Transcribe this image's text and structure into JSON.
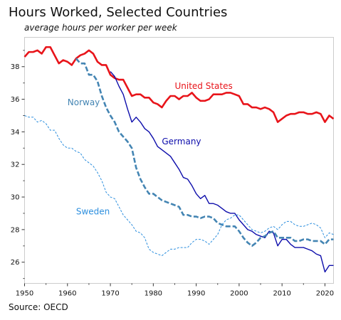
{
  "chart_data": {
    "type": "line",
    "title": "Hours Worked, Selected Countries",
    "subtitle": "average hours per worker per week",
    "source": "Source: OECD",
    "xlim": [
      1950,
      2022
    ],
    "ylim": [
      24.7,
      39.8
    ],
    "xticks": [
      1950,
      1960,
      1970,
      1980,
      1990,
      2000,
      2010,
      2020
    ],
    "yticks": [
      26,
      28,
      30,
      32,
      34,
      36,
      38
    ],
    "grid": false,
    "series": [
      {
        "name": "United States",
        "color": "#e8141a",
        "style": "solid-thick",
        "label_pos": [
          1985,
          36.8
        ],
        "x": [
          1950,
          1951,
          1952,
          1953,
          1954,
          1955,
          1956,
          1957,
          1958,
          1959,
          1960,
          1961,
          1962,
          1963,
          1964,
          1965,
          1966,
          1967,
          1968,
          1969,
          1970,
          1971,
          1972,
          1973,
          1974,
          1975,
          1976,
          1977,
          1978,
          1979,
          1980,
          1981,
          1982,
          1983,
          1984,
          1985,
          1986,
          1987,
          1988,
          1989,
          1990,
          1991,
          1992,
          1993,
          1994,
          1995,
          1996,
          1997,
          1998,
          1999,
          2000,
          2001,
          2002,
          2003,
          2004,
          2005,
          2006,
          2007,
          2008,
          2009,
          2010,
          2011,
          2012,
          2013,
          2014,
          2015,
          2016,
          2017,
          2018,
          2019,
          2020,
          2021,
          2022
        ],
        "y": [
          38.6,
          38.9,
          38.9,
          39.0,
          38.8,
          39.2,
          39.2,
          38.7,
          38.2,
          38.4,
          38.3,
          38.1,
          38.5,
          38.7,
          38.8,
          39.0,
          38.8,
          38.3,
          38.1,
          38.1,
          37.5,
          37.3,
          37.2,
          37.2,
          36.7,
          36.2,
          36.3,
          36.3,
          36.1,
          36.1,
          35.8,
          35.7,
          35.5,
          35.9,
          36.2,
          36.2,
          36.0,
          36.2,
          36.2,
          36.4,
          36.1,
          35.9,
          35.9,
          36.0,
          36.3,
          36.3,
          36.3,
          36.4,
          36.4,
          36.3,
          36.2,
          35.7,
          35.7,
          35.5,
          35.5,
          35.4,
          35.5,
          35.4,
          35.2,
          34.6,
          34.8,
          35.0,
          35.1,
          35.1,
          35.2,
          35.2,
          35.1,
          35.1,
          35.2,
          35.1,
          34.6,
          35.0,
          34.8
        ]
      },
      {
        "name": "Germany",
        "color": "#0d0dab",
        "style": "solid",
        "label_pos": [
          1982,
          33.4
        ],
        "x": [
          1970,
          1971,
          1972,
          1973,
          1974,
          1975,
          1976,
          1977,
          1978,
          1979,
          1980,
          1981,
          1982,
          1983,
          1984,
          1985,
          1986,
          1987,
          1988,
          1989,
          1990,
          1991,
          1992,
          1993,
          1994,
          1995,
          1996,
          1997,
          1998,
          1999,
          2000,
          2001,
          2002,
          2003,
          2004,
          2005,
          2006,
          2007,
          2008,
          2009,
          2010,
          2011,
          2012,
          2013,
          2014,
          2015,
          2016,
          2017,
          2018,
          2019,
          2020,
          2021,
          2022
        ],
        "y": [
          37.7,
          37.4,
          36.8,
          36.3,
          35.4,
          34.6,
          34.9,
          34.6,
          34.2,
          34.0,
          33.6,
          33.1,
          32.9,
          32.7,
          32.5,
          32.1,
          31.7,
          31.2,
          31.1,
          30.7,
          30.2,
          29.9,
          30.1,
          29.6,
          29.6,
          29.5,
          29.3,
          29.1,
          29.0,
          29.0,
          28.6,
          28.3,
          28.0,
          27.9,
          27.7,
          27.6,
          27.5,
          27.9,
          27.8,
          27.0,
          27.4,
          27.4,
          27.1,
          26.9,
          26.9,
          26.9,
          26.8,
          26.7,
          26.5,
          26.4,
          25.4,
          25.8,
          25.8
        ]
      },
      {
        "name": "Norway",
        "color": "#4485b3",
        "style": "dashed-thick",
        "label_pos": [
          1960,
          35.8
        ],
        "x": [
          1962,
          1963,
          1964,
          1965,
          1966,
          1967,
          1968,
          1969,
          1970,
          1971,
          1972,
          1973,
          1974,
          1975,
          1976,
          1977,
          1978,
          1979,
          1980,
          1981,
          1982,
          1983,
          1984,
          1985,
          1986,
          1987,
          1988,
          1989,
          1990,
          1991,
          1992,
          1993,
          1994,
          1995,
          1996,
          1997,
          1998,
          1999,
          2000,
          2001,
          2002,
          2003,
          2004,
          2005,
          2006,
          2007,
          2008,
          2009,
          2010,
          2011,
          2012,
          2013,
          2014,
          2015,
          2016,
          2017,
          2018,
          2019,
          2020,
          2021,
          2022
        ],
        "y": [
          38.5,
          38.2,
          38.2,
          37.5,
          37.5,
          37.1,
          36.2,
          35.5,
          35.0,
          34.6,
          34.0,
          33.7,
          33.4,
          33.0,
          31.8,
          31.1,
          30.6,
          30.2,
          30.2,
          30.0,
          29.8,
          29.7,
          29.6,
          29.5,
          29.4,
          28.9,
          28.9,
          28.8,
          28.8,
          28.7,
          28.8,
          28.8,
          28.7,
          28.4,
          28.3,
          28.2,
          28.2,
          28.2,
          27.9,
          27.5,
          27.2,
          27.0,
          27.2,
          27.5,
          27.6,
          27.8,
          27.9,
          27.5,
          27.5,
          27.5,
          27.5,
          27.3,
          27.3,
          27.4,
          27.4,
          27.3,
          27.3,
          27.3,
          27.1,
          27.4,
          27.4
        ]
      },
      {
        "name": "Sweden",
        "color": "#2d8fde",
        "style": "dashed-thin",
        "label_pos": [
          1962,
          29.1
        ],
        "x": [
          1950,
          1951,
          1952,
          1953,
          1954,
          1955,
          1956,
          1957,
          1958,
          1959,
          1960,
          1961,
          1962,
          1963,
          1964,
          1965,
          1966,
          1967,
          1968,
          1969,
          1970,
          1971,
          1972,
          1973,
          1974,
          1975,
          1976,
          1977,
          1978,
          1979,
          1980,
          1981,
          1982,
          1983,
          1984,
          1985,
          1986,
          1987,
          1988,
          1989,
          1990,
          1991,
          1992,
          1993,
          1994,
          1995,
          1996,
          1997,
          1998,
          1999,
          2000,
          2001,
          2002,
          2003,
          2004,
          2005,
          2006,
          2007,
          2008,
          2009,
          2010,
          2011,
          2012,
          2013,
          2014,
          2015,
          2016,
          2017,
          2018,
          2019,
          2020,
          2021,
          2022
        ],
        "y": [
          35.0,
          34.9,
          34.9,
          34.6,
          34.7,
          34.5,
          34.1,
          34.1,
          33.6,
          33.2,
          33.0,
          33.0,
          32.8,
          32.7,
          32.3,
          32.1,
          31.9,
          31.5,
          31.0,
          30.3,
          30.0,
          29.9,
          29.4,
          28.9,
          28.6,
          28.3,
          27.9,
          27.8,
          27.5,
          26.8,
          26.6,
          26.5,
          26.4,
          26.6,
          26.8,
          26.8,
          26.9,
          26.9,
          26.9,
          27.2,
          27.4,
          27.4,
          27.3,
          27.1,
          27.4,
          27.7,
          28.3,
          28.6,
          28.7,
          28.9,
          28.9,
          28.6,
          28.3,
          28.0,
          27.9,
          27.8,
          27.9,
          28.1,
          28.2,
          28.0,
          28.3,
          28.5,
          28.5,
          28.3,
          28.2,
          28.2,
          28.3,
          28.4,
          28.3,
          28.1,
          27.5,
          27.8,
          27.7
        ]
      }
    ]
  }
}
